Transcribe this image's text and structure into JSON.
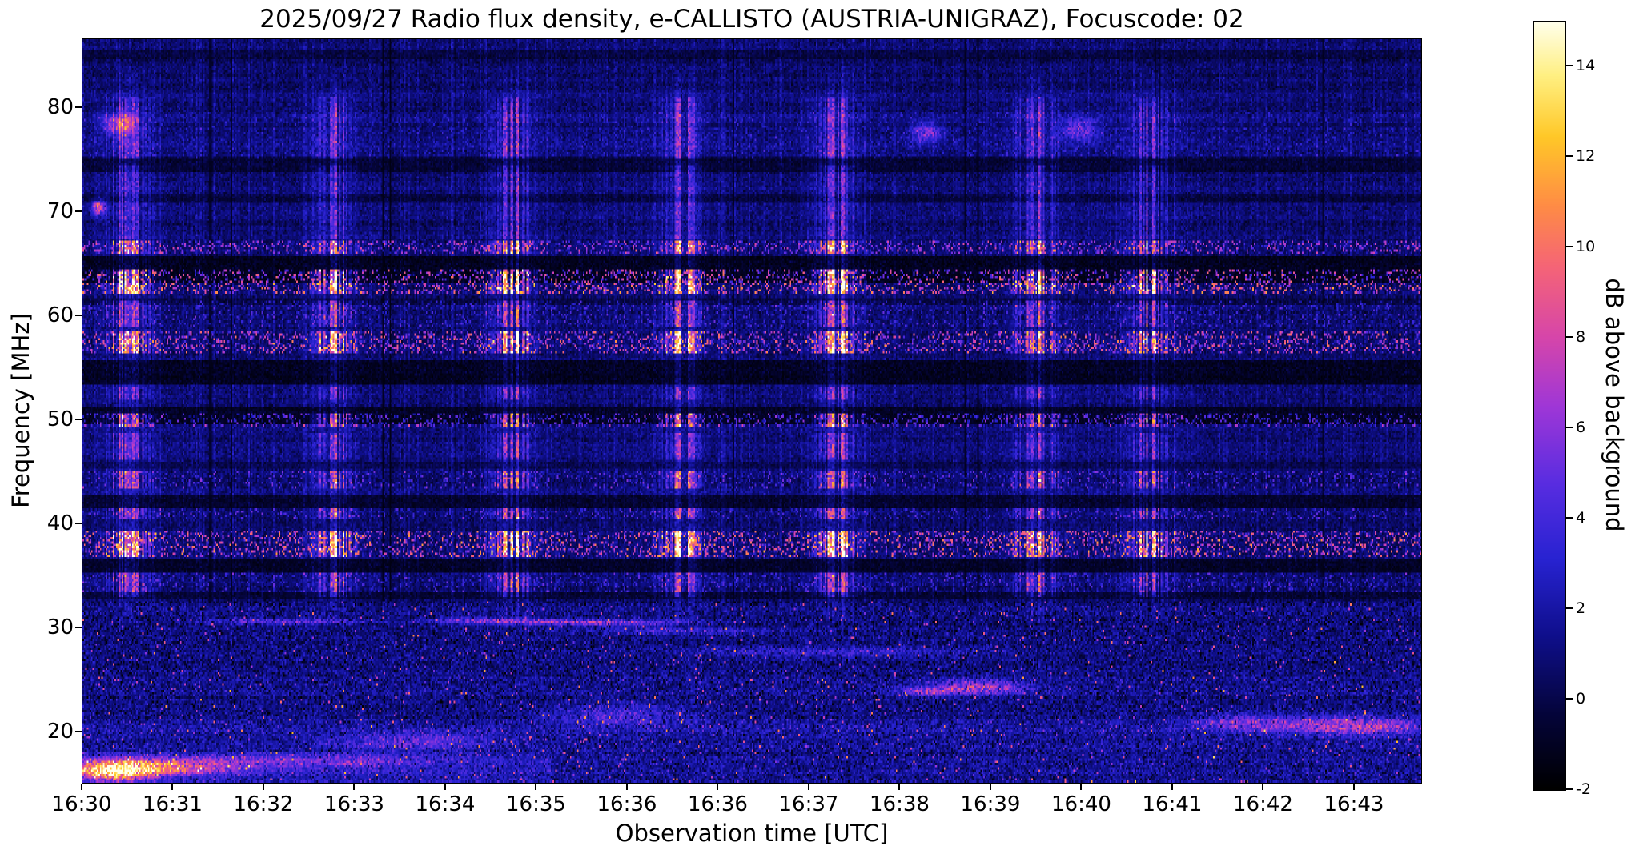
{
  "figure": {
    "title": "2025/09/27  Radio flux density, e-CALLISTO (AUSTRIA-UNIGRAZ), Focuscode: 02",
    "xlabel": "Observation time [UTC]",
    "ylabel": "Frequency [MHz]",
    "colorbar_label": "dB above background",
    "background_color": "#ffffff",
    "text_color": "#000000"
  },
  "chart_data": {
    "type": "heatmap",
    "title": "2025/09/27  Radio flux density, e-CALLISTO (AUSTRIA-UNIGRAZ), Focuscode: 02",
    "xlabel": "Observation time [UTC]",
    "ylabel": "Frequency [MHz]",
    "x_tick_labels": [
      "16:30",
      "16:31",
      "16:32",
      "16:33",
      "16:34",
      "16:35",
      "16:36",
      "16:36",
      "16:37",
      "16:38",
      "16:39",
      "16:40",
      "16:41",
      "16:42",
      "16:43"
    ],
    "x_tick_spacing_frac": 0.0678,
    "y_tick_values": [
      20,
      30,
      40,
      50,
      60,
      70,
      80
    ],
    "freq_range_mhz": [
      15.0,
      86.6
    ],
    "time_start_utc": "16:30",
    "grid": false,
    "color_scale": {
      "label": "dB above background",
      "ticks": [
        -2,
        0,
        2,
        4,
        6,
        8,
        10,
        12,
        14
      ],
      "range": [
        -2,
        15
      ],
      "stops": [
        [
          0.0,
          0,
          0,
          0
        ],
        [
          0.1,
          5,
          5,
          60
        ],
        [
          0.2,
          15,
          15,
          140
        ],
        [
          0.3,
          40,
          35,
          210
        ],
        [
          0.4,
          90,
          45,
          225
        ],
        [
          0.5,
          160,
          55,
          215
        ],
        [
          0.59,
          215,
          70,
          170
        ],
        [
          0.68,
          245,
          100,
          120
        ],
        [
          0.76,
          255,
          140,
          70
        ],
        [
          0.85,
          255,
          200,
          40
        ],
        [
          0.93,
          255,
          240,
          130
        ],
        [
          1.0,
          255,
          255,
          235
        ]
      ]
    },
    "bursts": [
      {
        "x": 0.034,
        "w": 0.013,
        "a": 1.0
      },
      {
        "x": 0.188,
        "w": 0.012,
        "a": 1.0
      },
      {
        "x": 0.322,
        "w": 0.013,
        "a": 0.95
      },
      {
        "x": 0.447,
        "w": 0.012,
        "a": 1.0
      },
      {
        "x": 0.563,
        "w": 0.012,
        "a": 1.0
      },
      {
        "x": 0.712,
        "w": 0.014,
        "a": 1.0
      },
      {
        "x": 0.798,
        "w": 0.013,
        "a": 0.95
      }
    ],
    "burst_freq_extent_mhz": [
      33,
      81
    ],
    "bright_bands": [
      {
        "f": [
          62.0,
          64.4
        ],
        "amp": 15
      },
      {
        "f": [
          65.9,
          67.3
        ],
        "amp": 10.5
      },
      {
        "f": [
          56.4,
          58.4
        ],
        "amp": 13
      },
      {
        "f": [
          49.3,
          50.5
        ],
        "amp": 10
      },
      {
        "f": [
          43.4,
          45.0
        ],
        "amp": 8
      },
      {
        "f": [
          40.3,
          41.4
        ],
        "amp": 7
      },
      {
        "f": [
          36.7,
          39.3
        ],
        "amp": 14
      },
      {
        "f": [
          33.4,
          35.2
        ],
        "amp": 6.5
      },
      {
        "f": [
          46.2,
          48.6
        ],
        "amp": 5
      },
      {
        "f": [
          51.8,
          53.2
        ],
        "amp": 4.5
      },
      {
        "f": [
          58.9,
          61.4
        ],
        "amp": 6.5
      },
      {
        "f": [
          67.5,
          74.5
        ],
        "amp": 3.4
      },
      {
        "f": [
          75.0,
          80.5
        ],
        "amp": 4.2
      },
      {
        "f": [
          80.5,
          83.5
        ],
        "amp": 2.6
      },
      {
        "f": [
          30.3,
          33.3
        ],
        "amp": 3
      }
    ],
    "dark_bands": [
      {
        "f": [
          63.1,
          65.7
        ],
        "depth": 0.92
      },
      {
        "f": [
          53.4,
          55.7
        ],
        "depth": 0.9
      },
      {
        "f": [
          49.6,
          51.3
        ],
        "depth": 0.85
      },
      {
        "f": [
          41.5,
          42.7
        ],
        "depth": 0.75
      },
      {
        "f": [
          35.3,
          36.6
        ],
        "depth": 0.8
      },
      {
        "f": [
          32.6,
          33.3
        ],
        "depth": 0.6
      },
      {
        "f": [
          73.8,
          75.4
        ],
        "depth": 0.65
      },
      {
        "f": [
          84.6,
          85.5
        ],
        "depth": 0.5
      },
      {
        "f": [
          70.8,
          71.6
        ],
        "depth": 0.45
      },
      {
        "f": [
          78.0,
          78.6
        ],
        "depth": 0.35
      },
      {
        "f": [
          61.0,
          61.6
        ],
        "depth": 0.4
      },
      {
        "f": [
          45.2,
          45.9
        ],
        "depth": 0.4
      }
    ],
    "noise_region": {
      "max_f": 32.5,
      "extra": 0.5
    },
    "speckle_bands": [
      {
        "f": [
          19.8,
          21.2
        ],
        "add": 0.7,
        "p": 0.1,
        "amp": 2.8
      },
      {
        "f": [
          23.3,
          25.2
        ],
        "add": 0.4,
        "p": 0.08,
        "amp": 2.5
      },
      {
        "f": [
          75.0,
          79.5
        ],
        "add": 0.3,
        "p": 0.14,
        "amp": 2.2
      }
    ],
    "hotspots": [
      {
        "x": 0.025,
        "f": 16.2,
        "rx": 0.03,
        "rf": 0.9,
        "a": 16
      },
      {
        "x": 0.07,
        "f": 16.6,
        "rx": 0.05,
        "rf": 0.8,
        "a": 7
      },
      {
        "x": 0.18,
        "f": 17.0,
        "rx": 0.08,
        "rf": 0.7,
        "a": 3.5
      },
      {
        "x": 0.15,
        "f": 30.5,
        "rx": 0.06,
        "rf": 0.28,
        "a": 5
      },
      {
        "x": 0.38,
        "f": 30.4,
        "rx": 0.07,
        "rf": 0.3,
        "a": 7
      },
      {
        "x": 0.3,
        "f": 30.6,
        "rx": 0.04,
        "rf": 0.3,
        "a": 5
      },
      {
        "x": 0.45,
        "f": 29.6,
        "rx": 0.08,
        "rf": 0.3,
        "a": 3
      },
      {
        "x": 0.67,
        "f": 24.2,
        "rx": 0.035,
        "rf": 0.7,
        "a": 7
      },
      {
        "x": 0.63,
        "f": 23.8,
        "rx": 0.02,
        "rf": 0.5,
        "a": 5
      },
      {
        "x": 0.95,
        "f": 20.5,
        "rx": 0.05,
        "rf": 0.9,
        "a": 6.5
      },
      {
        "x": 0.87,
        "f": 20.8,
        "rx": 0.04,
        "rf": 0.8,
        "a": 4.5
      },
      {
        "x": 0.56,
        "f": 27.6,
        "rx": 0.1,
        "rf": 0.5,
        "a": 3
      },
      {
        "x": 0.4,
        "f": 21.5,
        "rx": 0.05,
        "rf": 1.0,
        "a": 3.5
      },
      {
        "x": 0.25,
        "f": 19.0,
        "rx": 0.06,
        "rf": 0.8,
        "a": 4
      },
      {
        "x": 0.012,
        "f": 70.4,
        "rx": 0.005,
        "rf": 0.7,
        "a": 9
      },
      {
        "x": 0.028,
        "f": 78.4,
        "rx": 0.012,
        "rf": 0.9,
        "a": 7
      },
      {
        "x": 0.63,
        "f": 77.6,
        "rx": 0.012,
        "rf": 1.0,
        "a": 5.5
      },
      {
        "x": 0.745,
        "f": 77.9,
        "rx": 0.014,
        "rf": 1.1,
        "a": 5
      }
    ]
  }
}
